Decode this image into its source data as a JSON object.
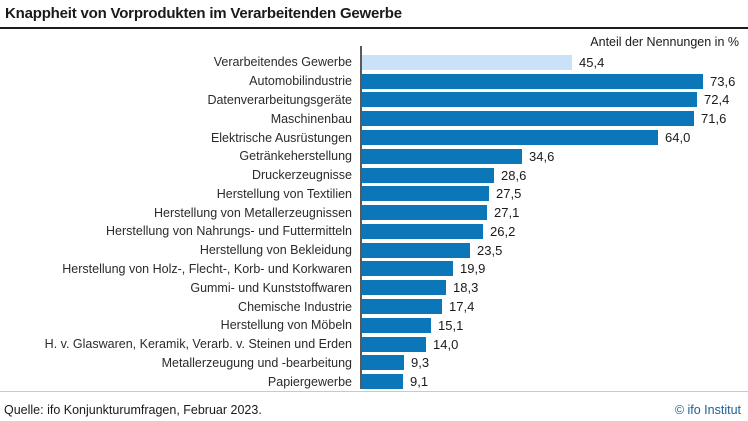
{
  "header": {
    "title": "Knappheit von Vorprodukten im Verarbeitenden Gewerbe"
  },
  "axis_note": "Anteil der Nennungen in %",
  "footer": {
    "source": "Quelle: ifo Konjunkturumfragen, Februar 2023.",
    "copyright": "© ifo Institut"
  },
  "colors": {
    "bar": "#0b77b8",
    "bar_highlight": "#c9e2f7",
    "axis": "#5a5a5a",
    "copyright_text": "#1f6094"
  },
  "chart_data": {
    "type": "bar",
    "orientation": "horizontal",
    "title": "Knappheit von Vorprodukten im Verarbeitenden Gewerbe",
    "xlabel": "Anteil der Nennungen in %",
    "xlim": [
      0,
      80
    ],
    "grid": false,
    "legend": false,
    "highlight_index": 0,
    "highlight_note": "first bar (Verarbeitendes Gewerbe) drawn in light blue, all others dark blue",
    "categories": [
      "Verarbeitendes Gewerbe",
      "Automobilindustrie",
      "Datenverarbeitungsgeräte",
      "Maschinenbau",
      "Elektrische Ausrüstungen",
      "Getränkeherstellung",
      "Druckerzeugnisse",
      "Herstellung von Textilien",
      "Herstellung von Metallerzeugnissen",
      "Herstellung von Nahrungs- und Futtermitteln",
      "Herstellung von Bekleidung",
      "Herstellung von Holz-, Flecht-, Korb- und Korkwaren",
      "Gummi- und Kunststoffwaren",
      "Chemische Industrie",
      "Herstellung von Möbeln",
      "H. v. Glaswaren, Keramik, Verarb. v. Steinen und Erden",
      "Metallerzeugung und -bearbeitung",
      "Papiergewerbe"
    ],
    "values": [
      45.4,
      73.6,
      72.4,
      71.6,
      64.0,
      34.6,
      28.6,
      27.5,
      27.1,
      26.2,
      23.5,
      19.9,
      18.3,
      17.4,
      15.1,
      14.0,
      9.3,
      9.1
    ],
    "value_labels": [
      "45,4",
      "73,6",
      "72,4",
      "71,6",
      "64,0",
      "34,6",
      "28,6",
      "27,5",
      "27,1",
      "26,2",
      "23,5",
      "19,9",
      "18,3",
      "17,4",
      "15,1",
      "14,0",
      "9,3",
      "9,1"
    ]
  }
}
